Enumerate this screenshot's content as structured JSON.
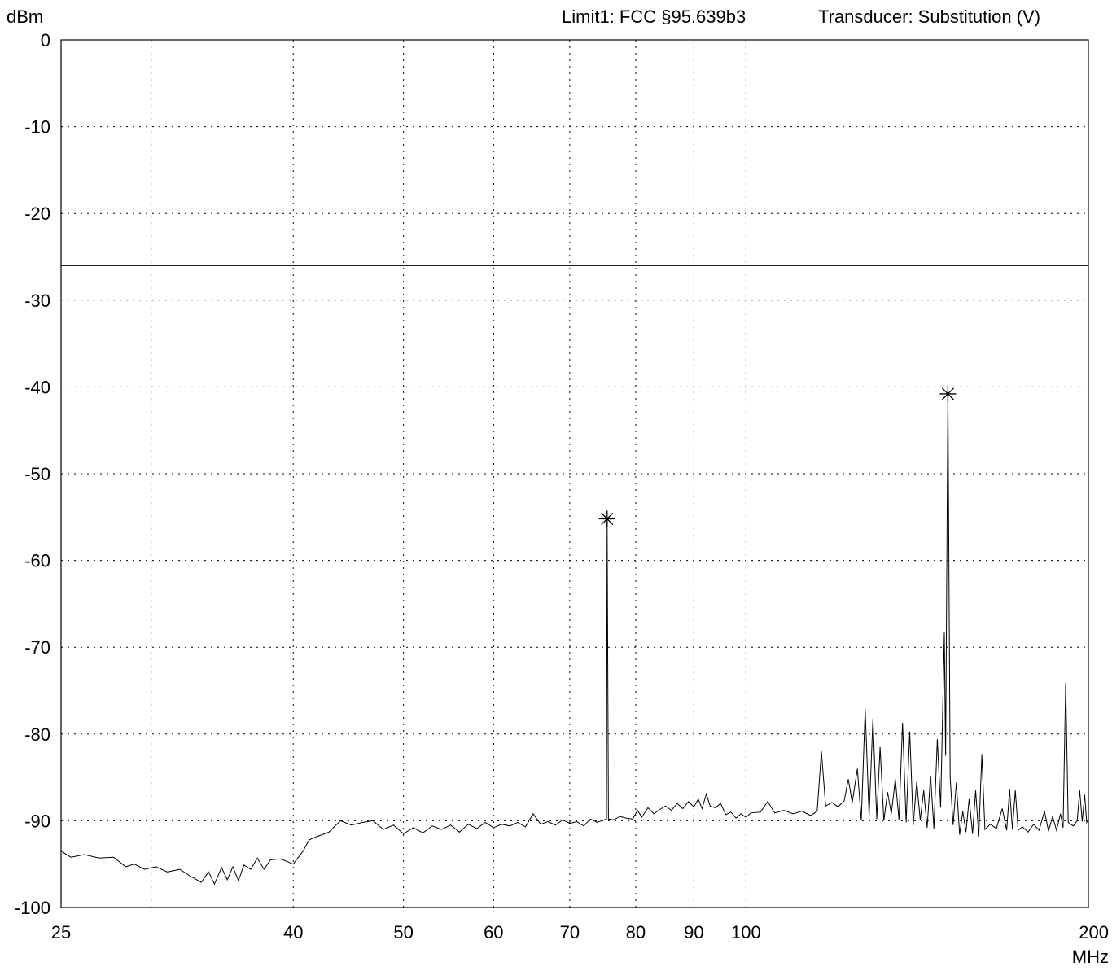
{
  "header": {
    "y_unit": "dBm",
    "limit_label": "Limit1: FCC §95.639b3",
    "transducer_label": "Transducer: Substitution (V)"
  },
  "colors": {
    "trace": "#000000",
    "grid": "#000000",
    "limit_line": "#000000",
    "background": "#ffffff"
  },
  "chart_data": {
    "type": "line",
    "title": "",
    "xlabel": "MHz",
    "ylabel": "dBm",
    "x_scale": "log",
    "xlim": [
      25,
      200
    ],
    "ylim": [
      -100,
      0
    ],
    "x_ticks": [
      25,
      40,
      50,
      60,
      70,
      80,
      90,
      100,
      200
    ],
    "x_grid": [
      30,
      40,
      50,
      60,
      70,
      80,
      90,
      100
    ],
    "y_ticks": [
      0,
      -10,
      -20,
      -30,
      -40,
      -50,
      -60,
      -70,
      -80,
      -90,
      -100
    ],
    "grid": true,
    "limit_line": {
      "name": "Limit1: FCC §95.639b3",
      "value": -26
    },
    "markers": [
      {
        "x": 75.5,
        "y": -55.2
      },
      {
        "x": 150.5,
        "y": -40.8
      }
    ],
    "series": [
      {
        "values": [
          [
            25,
            -93.5
          ],
          [
            25.5,
            -94.2
          ],
          [
            26.2,
            -93.9
          ],
          [
            27,
            -94.3
          ],
          [
            27.8,
            -94.2
          ],
          [
            28.5,
            -95.3
          ],
          [
            29,
            -95.0
          ],
          [
            29.6,
            -95.6
          ],
          [
            30.3,
            -95.3
          ],
          [
            31,
            -95.9
          ],
          [
            31.8,
            -95.6
          ],
          [
            32.4,
            -96.3
          ],
          [
            33.2,
            -97.1
          ],
          [
            33.7,
            -95.9
          ],
          [
            34.1,
            -97.3
          ],
          [
            34.6,
            -95.4
          ],
          [
            35,
            -96.8
          ],
          [
            35.4,
            -95.3
          ],
          [
            35.8,
            -96.9
          ],
          [
            36.2,
            -95.1
          ],
          [
            36.7,
            -95.6
          ],
          [
            37.2,
            -94.3
          ],
          [
            37.7,
            -95.6
          ],
          [
            38.2,
            -94.5
          ],
          [
            39,
            -94.4
          ],
          [
            40,
            -95.0
          ],
          [
            40.8,
            -93.5
          ],
          [
            41.3,
            -92.2
          ],
          [
            42,
            -91.8
          ],
          [
            43,
            -91.3
          ],
          [
            44,
            -90.0
          ],
          [
            45,
            -90.5
          ],
          [
            46,
            -90.2
          ],
          [
            47,
            -90.0
          ],
          [
            48,
            -91.0
          ],
          [
            49,
            -90.5
          ],
          [
            50,
            -91.5
          ],
          [
            51,
            -90.8
          ],
          [
            52,
            -91.4
          ],
          [
            53,
            -90.6
          ],
          [
            54,
            -91.0
          ],
          [
            55,
            -90.5
          ],
          [
            56,
            -91.3
          ],
          [
            57,
            -90.4
          ],
          [
            58,
            -90.9
          ],
          [
            59,
            -90.2
          ],
          [
            60,
            -90.8
          ],
          [
            61,
            -90.4
          ],
          [
            62,
            -90.6
          ],
          [
            63,
            -90.2
          ],
          [
            64,
            -90.7
          ],
          [
            65,
            -89.2
          ],
          [
            66,
            -90.4
          ],
          [
            67,
            -90.1
          ],
          [
            68,
            -90.5
          ],
          [
            69,
            -89.9
          ],
          [
            70,
            -90.3
          ],
          [
            71,
            -90.1
          ],
          [
            72,
            -90.6
          ],
          [
            73,
            -89.8
          ],
          [
            74,
            -90.2
          ],
          [
            75,
            -89.9
          ],
          [
            75.4,
            -89.8
          ],
          [
            75.5,
            -55.2
          ],
          [
            75.7,
            -89.8
          ],
          [
            76.5,
            -89.9
          ],
          [
            77.5,
            -89.5
          ],
          [
            78.5,
            -89.7
          ],
          [
            79.5,
            -89.8
          ],
          [
            80.3,
            -88.8
          ],
          [
            81,
            -89.6
          ],
          [
            82,
            -88.5
          ],
          [
            83,
            -89.2
          ],
          [
            84,
            -88.7
          ],
          [
            85,
            -88.3
          ],
          [
            86,
            -88.8
          ],
          [
            87,
            -88.0
          ],
          [
            88,
            -88.6
          ],
          [
            89,
            -87.8
          ],
          [
            90,
            -88.4
          ],
          [
            90.8,
            -87.5
          ],
          [
            91.5,
            -88.6
          ],
          [
            92.3,
            -86.9
          ],
          [
            93,
            -88.3
          ],
          [
            94,
            -88.5
          ],
          [
            95,
            -88.0
          ],
          [
            96,
            -89.3
          ],
          [
            97,
            -89.0
          ],
          [
            98,
            -89.7
          ],
          [
            99,
            -89.2
          ],
          [
            100,
            -89.6
          ],
          [
            101,
            -89.1
          ],
          [
            103,
            -89.0
          ],
          [
            104.5,
            -87.8
          ],
          [
            106,
            -89.1
          ],
          [
            108,
            -88.8
          ],
          [
            110,
            -89.2
          ],
          [
            112,
            -88.9
          ],
          [
            114,
            -89.4
          ],
          [
            115.5,
            -88.9
          ],
          [
            116.5,
            -82.0
          ],
          [
            117.5,
            -88.3
          ],
          [
            119,
            -87.9
          ],
          [
            120.5,
            -88.4
          ],
          [
            122,
            -87.7
          ],
          [
            123,
            -85.2
          ],
          [
            124,
            -87.9
          ],
          [
            125.3,
            -84.0
          ],
          [
            126.3,
            -90.0
          ],
          [
            127.3,
            -77.1
          ],
          [
            128.3,
            -89.5
          ],
          [
            129.3,
            -78.2
          ],
          [
            130.3,
            -89.8
          ],
          [
            131.2,
            -81.5
          ],
          [
            132.2,
            -90.0
          ],
          [
            133.2,
            -86.7
          ],
          [
            134.2,
            -89.2
          ],
          [
            135.3,
            -85.2
          ],
          [
            136.3,
            -89.9
          ],
          [
            137.3,
            -78.7
          ],
          [
            138.3,
            -90.2
          ],
          [
            139.3,
            -79.7
          ],
          [
            140.3,
            -90.5
          ],
          [
            141.3,
            -85.5
          ],
          [
            142.3,
            -89.9
          ],
          [
            143.3,
            -86.5
          ],
          [
            144.3,
            -90.8
          ],
          [
            145.3,
            -84.8
          ],
          [
            146.3,
            -90.9
          ],
          [
            147.3,
            -80.6
          ],
          [
            148.3,
            -88.5
          ],
          [
            149.4,
            -68.3
          ],
          [
            149.8,
            -82.5
          ],
          [
            150.5,
            -40.8
          ],
          [
            151.2,
            -85.0
          ],
          [
            152.1,
            -90.5
          ],
          [
            153.1,
            -85.6
          ],
          [
            154.1,
            -91.6
          ],
          [
            155.1,
            -88.9
          ],
          [
            156.1,
            -91.3
          ],
          [
            157.1,
            -87.5
          ],
          [
            158.2,
            -91.5
          ],
          [
            159.2,
            -86.5
          ],
          [
            160.2,
            -91.8
          ],
          [
            161.2,
            -82.4
          ],
          [
            162.2,
            -91.0
          ],
          [
            164,
            -90.4
          ],
          [
            166,
            -90.9
          ],
          [
            168,
            -88.6
          ],
          [
            169.5,
            -91.1
          ],
          [
            170.5,
            -86.4
          ],
          [
            171.5,
            -91.0
          ],
          [
            172.5,
            -86.5
          ],
          [
            173.5,
            -91.1
          ],
          [
            175,
            -90.7
          ],
          [
            177,
            -91.3
          ],
          [
            179,
            -90.4
          ],
          [
            181,
            -91.1
          ],
          [
            183,
            -88.9
          ],
          [
            184.5,
            -91.2
          ],
          [
            186,
            -89.5
          ],
          [
            187.5,
            -91.1
          ],
          [
            189,
            -89.2
          ],
          [
            190,
            -90.8
          ],
          [
            191,
            -74.1
          ],
          [
            192,
            -90.2
          ],
          [
            194,
            -90.6
          ],
          [
            195.5,
            -90.0
          ],
          [
            196.5,
            -86.5
          ],
          [
            197.5,
            -90.1
          ],
          [
            198.5,
            -87.0
          ],
          [
            199.3,
            -90.2
          ],
          [
            200,
            -89.8
          ]
        ]
      }
    ]
  }
}
